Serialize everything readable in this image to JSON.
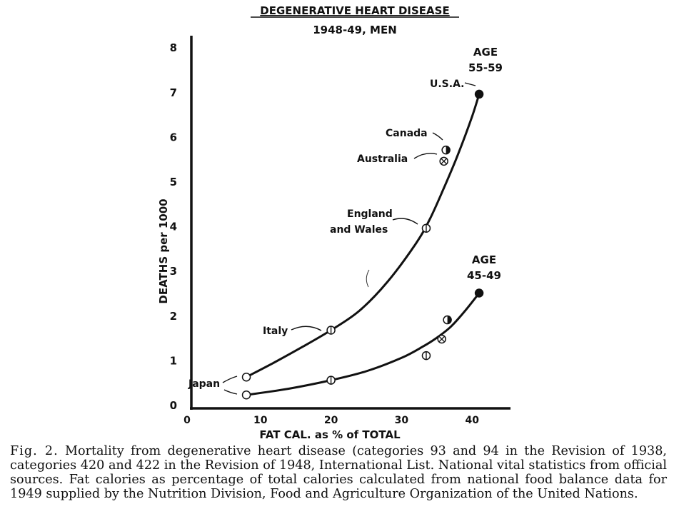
{
  "chart_data": {
    "type": "line",
    "title": "DEGENERATIVE HEART DISEASE",
    "subtitle": "1948-49, MEN",
    "xlabel": "FAT CAL. as % of TOTAL",
    "ylabel": "DEATHS per 1000",
    "xlim": [
      0,
      45
    ],
    "ylim": [
      0,
      8
    ],
    "x_ticks": [
      "0",
      "10",
      "20",
      "30",
      "40"
    ],
    "y_ticks": [
      "0",
      "1",
      "2",
      "3",
      "4",
      "5",
      "6",
      "7",
      "8"
    ],
    "grid": false,
    "series": [
      {
        "name": "AGE 55-59",
        "label_lines": [
          "AGE",
          "55-59"
        ],
        "curve": [
          [
            8,
            0.62
          ],
          [
            12,
            0.95
          ],
          [
            16,
            1.3
          ],
          [
            20,
            1.67
          ],
          [
            24,
            2.1
          ],
          [
            28,
            2.75
          ],
          [
            32,
            3.6
          ],
          [
            34,
            4.15
          ],
          [
            36,
            4.85
          ],
          [
            38,
            5.6
          ],
          [
            40,
            6.45
          ],
          [
            41,
            6.95
          ]
        ],
        "points": [
          {
            "country": "Japan",
            "x": 8,
            "y": 0.62,
            "marker": "open"
          },
          {
            "country": "Italy",
            "x": 20,
            "y": 1.67,
            "marker": "barred"
          },
          {
            "country": "England and Wales",
            "x": 33.5,
            "y": 3.95,
            "marker": "barred"
          },
          {
            "country": "Australia",
            "x": 36,
            "y": 5.45,
            "marker": "crossed"
          },
          {
            "country": "Canada",
            "x": 36.3,
            "y": 5.7,
            "marker": "half"
          },
          {
            "country": "U.S.A.",
            "x": 41,
            "y": 6.95,
            "marker": "filled"
          }
        ]
      },
      {
        "name": "AGE 45-49",
        "label_lines": [
          "AGE",
          "45-49"
        ],
        "curve": [
          [
            8,
            0.22
          ],
          [
            14,
            0.36
          ],
          [
            20,
            0.55
          ],
          [
            25,
            0.75
          ],
          [
            30,
            1.05
          ],
          [
            33,
            1.3
          ],
          [
            35,
            1.5
          ],
          [
            37,
            1.75
          ],
          [
            39,
            2.1
          ],
          [
            41,
            2.5
          ]
        ],
        "points": [
          {
            "country": "Japan",
            "x": 8,
            "y": 0.22,
            "marker": "open"
          },
          {
            "country": "Italy",
            "x": 20,
            "y": 0.55,
            "marker": "barred"
          },
          {
            "country": "England and Wales",
            "x": 33.5,
            "y": 1.1,
            "marker": "barred"
          },
          {
            "country": "Australia",
            "x": 35.7,
            "y": 1.47,
            "marker": "crossed"
          },
          {
            "country": "Canada",
            "x": 36.5,
            "y": 1.9,
            "marker": "half"
          },
          {
            "country": "U.S.A.",
            "x": 41,
            "y": 2.5,
            "marker": "filled"
          }
        ]
      }
    ],
    "annotations": [
      {
        "text": "Japan",
        "target_x": 8,
        "target_y": 0.4
      },
      {
        "text": "Italy",
        "target_x": 20,
        "target_y": 1.67
      },
      {
        "text_lines": [
          "England",
          "and Wales"
        ],
        "target_x": 33.5,
        "target_y": 3.95
      },
      {
        "text": "Australia",
        "target_x": 36,
        "target_y": 5.45
      },
      {
        "text": "Canada",
        "target_x": 36.3,
        "target_y": 5.7
      },
      {
        "text": "U.S.A.",
        "target_x": 41,
        "target_y": 6.95
      }
    ]
  },
  "caption": {
    "fig_label": "Fig. 2.",
    "text": "Mortality from degenerative heart disease (categories 93 and 94 in the Revision of 1938, categories 420 and 422 in the Revision of 1948, International List. National vital statistics from official sources. Fat calories as percentage of total calories calculated from national food balance data for 1949 supplied by the Nutrition Division, Food and Agriculture Organization of the United Nations."
  }
}
